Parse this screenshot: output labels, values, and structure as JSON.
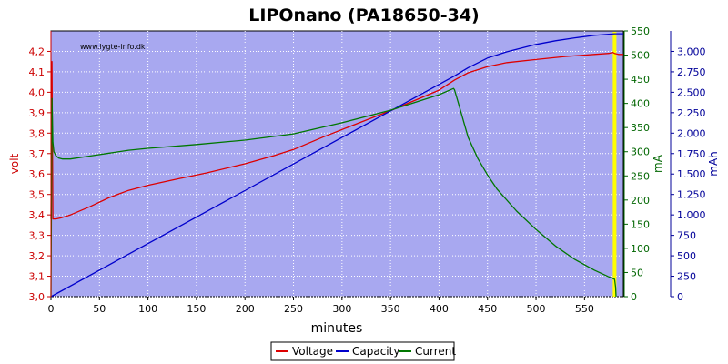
{
  "chart_data": {
    "type": "line",
    "title": "LIPOnano (PA18650-34)",
    "watermark": "www.lygte-info.dk",
    "xlabel": "minutes",
    "xlim": [
      0,
      590
    ],
    "x_ticks": [
      0,
      50,
      100,
      150,
      200,
      250,
      300,
      350,
      400,
      450,
      500,
      550
    ],
    "axes": {
      "volt": {
        "label": "volt",
        "ylim": [
          3.0,
          4.3
        ],
        "ticks": [
          "3,0",
          "3,1",
          "3,2",
          "3,3",
          "3,4",
          "3,5",
          "3,6",
          "3,7",
          "3,8",
          "3,9",
          "4,0",
          "4,1",
          "4,2"
        ],
        "color": "#cc0000"
      },
      "mA": {
        "label": "mA",
        "ylim": [
          0,
          550
        ],
        "ticks": [
          "0",
          "50",
          "100",
          "150",
          "200",
          "250",
          "300",
          "350",
          "400",
          "450",
          "500",
          "550"
        ],
        "color": "#006600"
      },
      "mAh": {
        "label": "mAh",
        "ylim": [
          0,
          3250
        ],
        "ticks": [
          "0",
          "250",
          "500",
          "750",
          "1.000",
          "1.250",
          "1.500",
          "1.750",
          "2.000",
          "2.250",
          "2.500",
          "2.750",
          "3.000"
        ],
        "color": "#000099"
      }
    },
    "marker": {
      "x": 581,
      "color": "#ffff00"
    },
    "series": [
      {
        "name": "Voltage",
        "axis": "volt",
        "color": "#dd0000",
        "x": [
          0,
          1,
          2,
          5,
          10,
          20,
          40,
          60,
          80,
          100,
          130,
          160,
          200,
          230,
          250,
          280,
          320,
          350,
          380,
          400,
          416,
          430,
          450,
          470,
          500,
          530,
          560,
          575,
          579,
          581,
          585,
          590
        ],
        "y": [
          3.38,
          4.15,
          3.38,
          3.38,
          3.385,
          3.4,
          3.44,
          3.485,
          3.52,
          3.545,
          3.575,
          3.605,
          3.65,
          3.69,
          3.72,
          3.78,
          3.855,
          3.91,
          3.97,
          4.01,
          4.06,
          4.095,
          4.125,
          4.145,
          4.16,
          4.175,
          4.185,
          4.19,
          4.195,
          4.19,
          4.185,
          4.185
        ]
      },
      {
        "name": "Capacity",
        "axis": "mAh",
        "color": "#0000cc",
        "x": [
          0,
          416,
          430,
          450,
          470,
          500,
          520,
          540,
          560,
          575,
          581,
          590
        ],
        "y": [
          0,
          2700,
          2800,
          2918,
          2995,
          3085,
          3130,
          3165,
          3195,
          3210,
          3215,
          3215
        ]
      },
      {
        "name": "Current",
        "axis": "mA",
        "color": "#007700",
        "x": [
          0,
          1,
          2,
          3,
          5,
          8,
          12,
          20,
          40,
          60,
          80,
          100,
          150,
          200,
          250,
          300,
          350,
          400,
          415,
          416,
          420,
          430,
          440,
          450,
          460,
          480,
          500,
          520,
          540,
          560,
          575,
          581,
          582,
          582.5
        ],
        "y": [
          0,
          410,
          320,
          300,
          292,
          287,
          285,
          285,
          291,
          297,
          303,
          307,
          315,
          324,
          337,
          360,
          386,
          418,
          431,
          428,
          400,
          330,
          286,
          252,
          222,
          177,
          139,
          105,
          77,
          55,
          41,
          36,
          20,
          0
        ]
      }
    ],
    "legend": {
      "position": "bottom-center",
      "entries": [
        "Voltage",
        "Capacity",
        "Current"
      ]
    }
  }
}
